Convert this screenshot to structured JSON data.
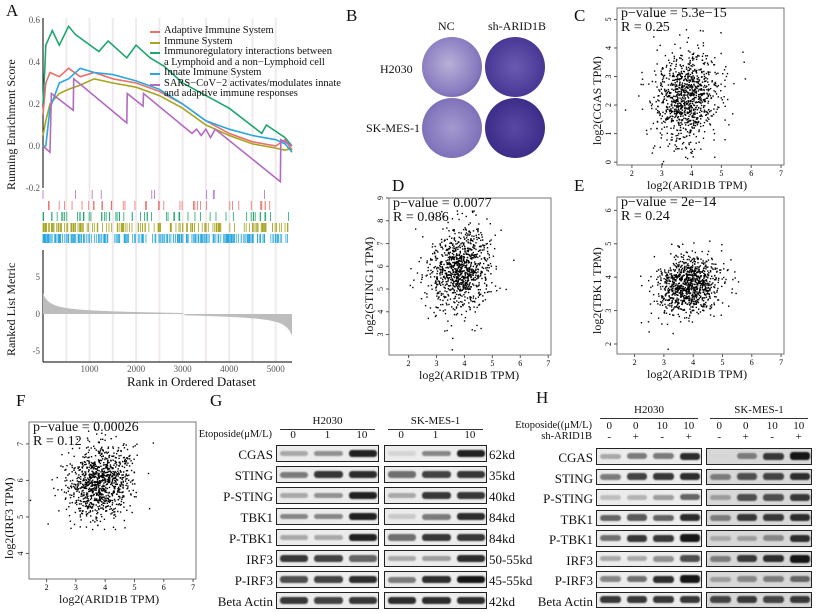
{
  "panels": {
    "A": "A",
    "B": "B",
    "C": "C",
    "D": "D",
    "E": "E",
    "F": "F",
    "G": "G",
    "H": "H"
  },
  "gsea": {
    "ylabel_top": "Running Enrichment Score",
    "ylabel_bottom": "Ranked List Metric",
    "xlabel": "Rank in Ordered Dataset",
    "yticks_top": [
      "0.6",
      "0.4",
      "0.2",
      "0.0",
      "-0.2"
    ],
    "yticks_bottom": [
      "5",
      "0",
      "-5"
    ],
    "xticks": [
      "1000",
      "2000",
      "3000",
      "4000",
      "5000"
    ],
    "legend": [
      {
        "label": "Adaptive Immune System",
        "color": "#e8716b"
      },
      {
        "label": "Immune System",
        "color": "#a8a420"
      },
      {
        "label": "Immunoregulatory interactions between",
        "label2": "a Lymphoid and a non−Lymphoid cell",
        "color": "#1ea66e"
      },
      {
        "label": "Innate Immune System",
        "color": "#2aa7df"
      },
      {
        "label": "SARS−CoV−2 activates/modulates innate",
        "label2": "and adaptive immune responses",
        "color": "#b36bc0"
      }
    ],
    "series": [
      {
        "color": "#e8716b",
        "x": [
          0,
          60,
          150,
          350,
          550,
          800,
          1100,
          1500,
          2000,
          2500,
          3000,
          3500,
          4000,
          4500,
          5000,
          5200,
          5350
        ],
        "y": [
          0.15,
          0.3,
          0.35,
          0.33,
          0.37,
          0.33,
          0.35,
          0.32,
          0.3,
          0.26,
          0.2,
          0.12,
          0.06,
          0.02,
          0.0,
          0.03,
          -0.02
        ]
      },
      {
        "color": "#a8a420",
        "x": [
          0,
          60,
          150,
          350,
          550,
          800,
          1100,
          1500,
          2000,
          2500,
          3000,
          3500,
          4000,
          4500,
          5000,
          5200,
          5350
        ],
        "y": [
          0.05,
          0.12,
          0.2,
          0.25,
          0.27,
          0.29,
          0.32,
          0.3,
          0.28,
          0.24,
          0.18,
          0.1,
          0.05,
          0.01,
          -0.01,
          -0.02,
          -0.01
        ]
      },
      {
        "color": "#1ea66e",
        "x": [
          0,
          40,
          60,
          200,
          350,
          550,
          700,
          1200,
          1400,
          1800,
          2000,
          2300,
          2600,
          3000,
          3500,
          4000,
          4700,
          4800,
          5200,
          5350
        ],
        "y": [
          0.2,
          0.37,
          0.48,
          0.55,
          0.48,
          0.57,
          0.53,
          0.45,
          0.5,
          0.42,
          0.48,
          0.42,
          0.38,
          0.3,
          0.24,
          0.18,
          0.06,
          0.1,
          0.04,
          0.0
        ]
      },
      {
        "color": "#2aa7df",
        "x": [
          0,
          60,
          150,
          350,
          550,
          800,
          1100,
          1500,
          2000,
          2500,
          3000,
          3500,
          4000,
          4500,
          5000,
          5200,
          5350
        ],
        "y": [
          0.0,
          0.0,
          0.18,
          0.3,
          0.32,
          0.37,
          0.35,
          0.34,
          0.31,
          0.27,
          0.2,
          0.12,
          0.08,
          0.05,
          0.03,
          0.01,
          -0.03
        ]
      },
      {
        "color": "#b36bc0",
        "x": [
          0,
          150,
          180,
          650,
          660,
          1800,
          1810,
          2150,
          2160,
          3200,
          3300,
          3400,
          3500,
          3600,
          3700,
          5100,
          5110,
          5350
        ],
        "y": [
          0.0,
          -0.03,
          0.25,
          0.17,
          0.32,
          0.11,
          0.25,
          0.19,
          0.25,
          0.06,
          0.08,
          0.05,
          0.08,
          0.04,
          0.08,
          -0.17,
          0.03,
          0.0
        ]
      }
    ]
  },
  "colony": {
    "cols": [
      "NC",
      "sh-ARID1B"
    ],
    "rows": [
      "H2030",
      "SK-MES-1"
    ],
    "stain_color": "#4a3a9a"
  },
  "scatters": [
    {
      "id": "C",
      "title": "p−value = 5.3e−15",
      "r": "R = 0.25",
      "xlabel": "log2(ARID1B TPM)",
      "ylabel": "log2(CGAS TPM)",
      "xticks": [
        "2",
        "3",
        "4",
        "5",
        "6",
        "7"
      ],
      "yticks": [
        "0",
        "1",
        "2",
        "3",
        "4",
        "5"
      ],
      "xlim": [
        1.5,
        7.1
      ],
      "ylim": [
        -0.1,
        5.4
      ],
      "center": [
        3.8,
        2.3
      ],
      "spread": [
        0.55,
        0.8
      ]
    },
    {
      "id": "D",
      "title": "p−value = 0.0077",
      "r": "R = 0.086",
      "xlabel": "log2(ARID1B TPM)",
      "ylabel": "log2(STING1 TPM)",
      "xticks": [
        "2",
        "3",
        "4",
        "5",
        "6",
        "7"
      ],
      "yticks": [
        "3",
        "4",
        "5",
        "6",
        "7",
        "8",
        "9"
      ],
      "xlim": [
        1.3,
        7.1
      ],
      "ylim": [
        2.1,
        9.0
      ],
      "center": [
        3.8,
        5.9
      ],
      "spread": [
        0.55,
        0.9
      ]
    },
    {
      "id": "E",
      "title": "p−value = 2e−14",
      "r": "R = 0.24",
      "xlabel": "log2(ARID1B TPM)",
      "ylabel": "log2(TBK1 TPM)",
      "xticks": [
        "2",
        "3",
        "4",
        "5",
        "6",
        "7"
      ],
      "yticks": [
        "2",
        "3",
        "4",
        "5",
        "6"
      ],
      "xlim": [
        1.4,
        7.1
      ],
      "ylim": [
        1.7,
        6.4
      ],
      "center": [
        3.8,
        3.8
      ],
      "spread": [
        0.55,
        0.45
      ]
    },
    {
      "id": "F",
      "title": "p−value = 0.00026",
      "r": "R = 0.12",
      "xlabel": "log2(ARID1B TPM)",
      "ylabel": "log2(IRF3 TPM)",
      "xticks": [
        "2",
        "3",
        "4",
        "5",
        "6",
        "7"
      ],
      "yticks": [
        "4",
        "5",
        "6",
        "7"
      ],
      "xlim": [
        1.4,
        7.1
      ],
      "ylim": [
        3.3,
        7.6
      ],
      "center": [
        3.8,
        6.0
      ],
      "spread": [
        0.55,
        0.5
      ]
    }
  ],
  "blotG": {
    "treatment_label": "Etoposide(μM/L)",
    "groups": [
      "H2030",
      "SK-MES-1"
    ],
    "conc": [
      "0",
      "1",
      "10"
    ],
    "rows": [
      {
        "name": "CGAS",
        "kd": "62kd",
        "i": [
          [
            0.3,
            0.4,
            0.9
          ],
          [
            0.1,
            0.45,
            0.9
          ]
        ]
      },
      {
        "name": "STING",
        "kd": "35kd",
        "i": [
          [
            0.5,
            0.8,
            0.85
          ],
          [
            0.55,
            0.75,
            0.8
          ]
        ]
      },
      {
        "name": "P-STING",
        "kd": "40kd",
        "i": [
          [
            0.3,
            0.4,
            0.9
          ],
          [
            0.3,
            0.8,
            0.8
          ]
        ]
      },
      {
        "name": "TBK1",
        "kd": "84kd",
        "i": [
          [
            0.45,
            0.45,
            0.9
          ],
          [
            0.15,
            0.5,
            0.85
          ]
        ]
      },
      {
        "name": "P-TBK1",
        "kd": "84kd",
        "i": [
          [
            0.3,
            0.3,
            0.9
          ],
          [
            0.55,
            0.8,
            0.8
          ]
        ]
      },
      {
        "name": "IRF3",
        "kd": "50-55kd",
        "i": [
          [
            0.8,
            0.75,
            0.6
          ],
          [
            0.3,
            0.35,
            0.85
          ]
        ]
      },
      {
        "name": "P-IRF3",
        "kd": "45-55kd",
        "i": [
          [
            0.7,
            0.75,
            0.85
          ],
          [
            0.5,
            0.85,
            0.95
          ]
        ]
      },
      {
        "name": "Beta Actin",
        "kd": "42kd",
        "i": [
          [
            0.8,
            0.75,
            0.8
          ],
          [
            0.85,
            0.85,
            0.85
          ]
        ]
      }
    ]
  },
  "blotH": {
    "treatment_label": "Etoposide((μM/L)",
    "sh_label": "sh-ARID1B",
    "groups": [
      "H2030",
      "SK-MES-1"
    ],
    "conc": [
      "0",
      "0",
      "10",
      "10"
    ],
    "sh": [
      "-",
      "+",
      "-",
      "+"
    ],
    "rows": [
      {
        "name": "CGAS",
        "i": [
          [
            0.3,
            0.5,
            0.5,
            0.85
          ],
          [
            0.1,
            0.5,
            0.8,
            0.95
          ]
        ]
      },
      {
        "name": "STING",
        "i": [
          [
            0.5,
            0.75,
            0.8,
            0.85
          ],
          [
            0.5,
            0.7,
            0.75,
            0.85
          ]
        ]
      },
      {
        "name": "P-STING",
        "i": [
          [
            0.2,
            0.25,
            0.35,
            0.6
          ],
          [
            0.35,
            0.7,
            0.7,
            0.8
          ]
        ]
      },
      {
        "name": "TBK1",
        "i": [
          [
            0.6,
            0.65,
            0.6,
            0.85
          ],
          [
            0.5,
            0.8,
            0.8,
            0.85
          ]
        ]
      },
      {
        "name": "P-TBK1",
        "i": [
          [
            0.55,
            0.8,
            0.8,
            0.95
          ],
          [
            0.3,
            0.35,
            0.45,
            0.85
          ]
        ]
      },
      {
        "name": "IRF3",
        "i": [
          [
            0.3,
            0.3,
            0.4,
            0.7
          ],
          [
            0.5,
            0.8,
            0.85,
            0.95
          ]
        ]
      },
      {
        "name": "P-IRF3",
        "i": [
          [
            0.45,
            0.55,
            0.85,
            0.95
          ],
          [
            0.35,
            0.45,
            0.5,
            0.6
          ]
        ]
      },
      {
        "name": "Beta Actin",
        "i": [
          [
            0.8,
            0.8,
            0.8,
            0.8
          ],
          [
            0.75,
            0.8,
            0.75,
            0.8
          ]
        ]
      }
    ]
  }
}
